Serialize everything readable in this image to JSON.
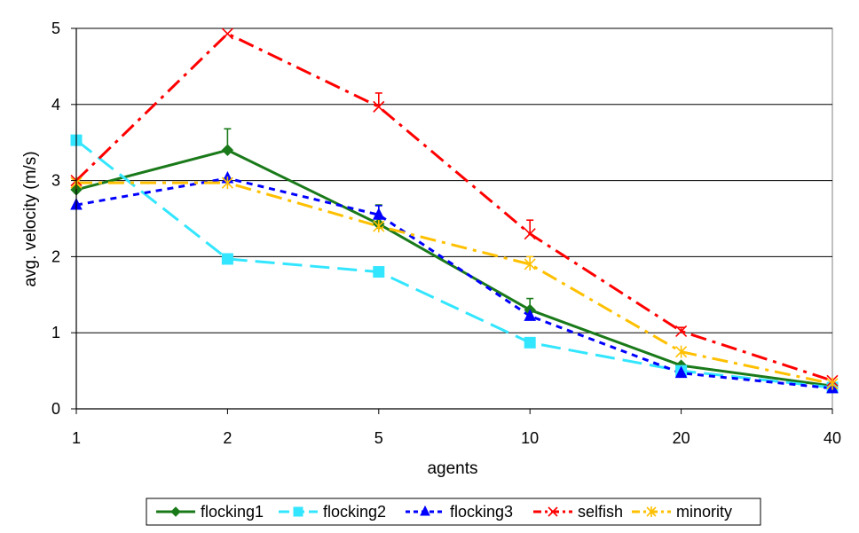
{
  "chart_data": {
    "type": "line",
    "title": "",
    "xlabel": "agents",
    "ylabel": "avg. velocity (m/s)",
    "categories": [
      "1",
      "2",
      "5",
      "10",
      "20",
      "40"
    ],
    "ylim": [
      0,
      5
    ],
    "yticks": [
      "0",
      "1",
      "2",
      "3",
      "4",
      "5"
    ],
    "grid": "horizontal",
    "legend_position": "bottom",
    "series": [
      {
        "name": "flocking1",
        "color": "#1a7a1a",
        "dash": "solid",
        "marker": "diamond",
        "values": [
          2.88,
          3.4,
          2.43,
          1.3,
          0.57,
          0.3
        ],
        "error": [
          0,
          0.28,
          0.25,
          0.15,
          0,
          0
        ]
      },
      {
        "name": "flocking2",
        "color": "#33e6ff",
        "dash": "long-dash",
        "marker": "square",
        "values": [
          3.53,
          1.97,
          1.8,
          0.87,
          0.5,
          0.28
        ],
        "error": [
          0,
          0,
          0,
          0,
          0,
          0
        ]
      },
      {
        "name": "flocking3",
        "color": "#0000ff",
        "dash": "short-dash",
        "marker": "triangle",
        "values": [
          2.68,
          3.03,
          2.55,
          1.22,
          0.47,
          0.27
        ],
        "error": [
          0,
          0,
          0.12,
          0.1,
          0,
          0
        ]
      },
      {
        "name": "selfish",
        "color": "#ff0000",
        "dash": "dash-dot",
        "marker": "x",
        "values": [
          3.0,
          4.93,
          3.97,
          2.3,
          1.02,
          0.37
        ],
        "error": [
          0,
          0,
          0.18,
          0.18,
          0.05,
          0
        ]
      },
      {
        "name": "minority",
        "color": "#ffc000",
        "dash": "dash-dot",
        "marker": "asterisk",
        "values": [
          2.97,
          2.97,
          2.4,
          1.9,
          0.75,
          0.33
        ],
        "error": [
          0,
          0,
          0,
          0.1,
          0,
          0
        ]
      }
    ]
  }
}
